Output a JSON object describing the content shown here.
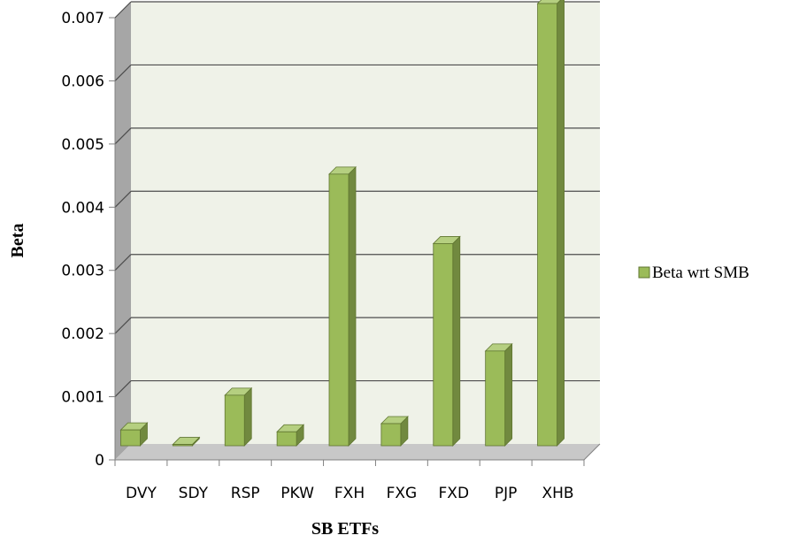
{
  "chart_data": {
    "type": "bar",
    "style": "3d-column",
    "categories": [
      "DVY",
      "SDY",
      "RSP",
      "PKW",
      "FXH",
      "FXG",
      "FXD",
      "PJP",
      "XHB"
    ],
    "series": [
      {
        "name": "Beta wrt SMB",
        "values": [
          0.00025,
          2e-05,
          0.0008,
          0.00022,
          0.0043,
          0.00035,
          0.0032,
          0.0015,
          0.007
        ]
      }
    ],
    "xlabel": "SB ETFs",
    "ylabel": "Beta",
    "ylim": [
      0,
      0.007
    ],
    "yticks": [
      "0",
      "0.001",
      "0.002",
      "0.003",
      "0.004",
      "0.005",
      "0.006",
      "0.007"
    ],
    "grid": true,
    "legend_position": "right"
  },
  "colors": {
    "bar_front": "#9BBB59",
    "bar_side": "#71893F",
    "bar_top": "#B5CF80",
    "bar_outline": "#5F7530",
    "back_wall": "#EFF2E8",
    "side_wall": "#A6A6A6",
    "floor": "#C8C8C8",
    "gridline": "#4D4D4D"
  }
}
